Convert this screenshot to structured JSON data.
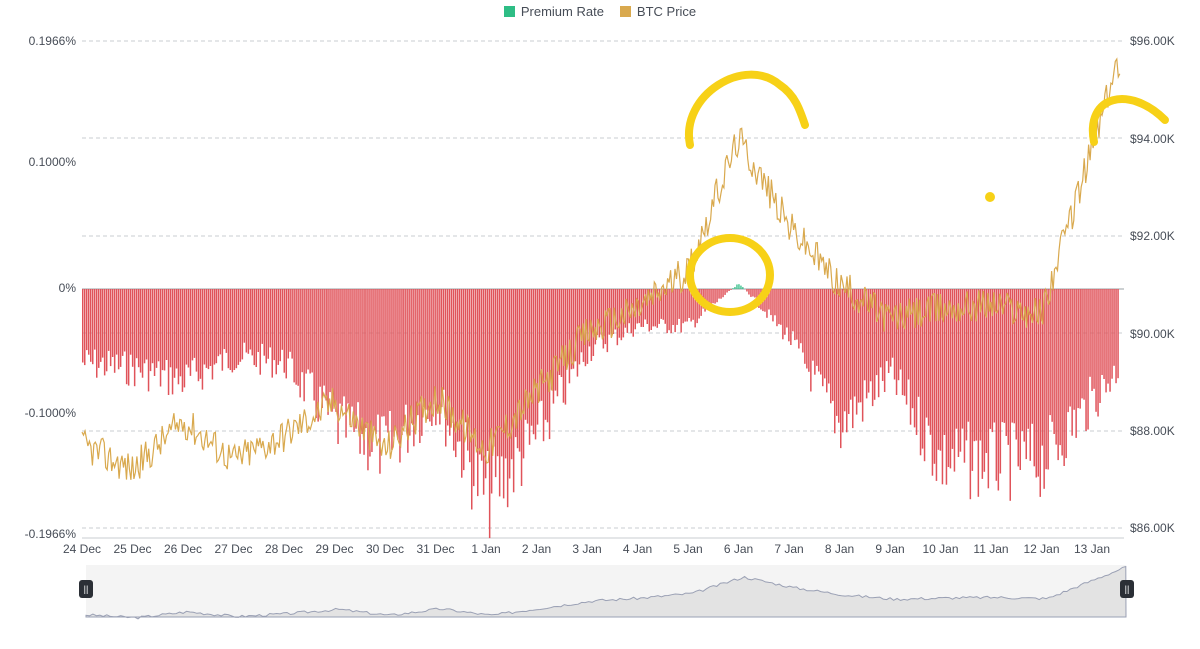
{
  "legend": {
    "premium_label": "Premium Rate",
    "price_label": "BTC Price"
  },
  "colors": {
    "premium_negative": "#e0535a",
    "premium_positive": "#2ebd85",
    "price_line": "#d9a94e",
    "annotation": "#f7d117",
    "grid": "#c9ccd1",
    "navigator_fill": "#e3e3e3",
    "navigator_line": "#9aa0b4"
  },
  "chart_data": {
    "type": "bar+line",
    "series": [
      {
        "name": "Premium Rate",
        "type": "bar",
        "unit": "%"
      },
      {
        "name": "BTC Price",
        "type": "line",
        "unit": "USD"
      }
    ],
    "left_axis": {
      "ticks": [
        "0.1966%",
        "0.1000%",
        "0%",
        "-0.1000%",
        "-0.1966%"
      ],
      "range": [
        -0.1966,
        0.1966
      ]
    },
    "right_axis": {
      "ticks": [
        "$96.00K",
        "$94.00K",
        "$92.00K",
        "$90.00K",
        "$88.00K",
        "$86.00K"
      ],
      "range": [
        86000,
        96000
      ]
    },
    "x_ticks": [
      "24 Dec",
      "25 Dec",
      "26 Dec",
      "27 Dec",
      "28 Dec",
      "29 Dec",
      "30 Dec",
      "31 Dec",
      "1 Jan",
      "2 Jan",
      "3 Jan",
      "4 Jan",
      "5 Jan",
      "6 Jan",
      "7 Jan",
      "8 Jan",
      "9 Jan",
      "10 Jan",
      "11 Jan",
      "12 Jan",
      "13 Jan"
    ],
    "premium_rate_daily_approx": [
      -0.06,
      -0.065,
      -0.075,
      -0.055,
      -0.06,
      -0.11,
      -0.13,
      -0.09,
      -0.17,
      -0.12,
      -0.05,
      -0.03,
      -0.03,
      0.005,
      -0.04,
      -0.11,
      -0.07,
      -0.14,
      -0.14,
      -0.14,
      -0.09
    ],
    "btc_price_daily_approx": [
      87700,
      87200,
      88200,
      87400,
      87900,
      88600,
      87600,
      88700,
      87600,
      88800,
      90000,
      90500,
      91300,
      94000,
      92200,
      91000,
      90300,
      90500,
      90600,
      90400,
      93800
    ],
    "grid": true,
    "legend_position": "top-center"
  }
}
